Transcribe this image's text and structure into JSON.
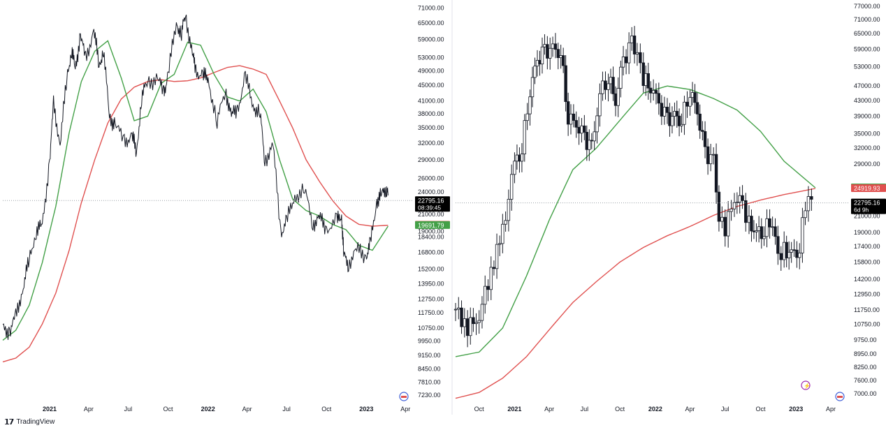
{
  "footer": {
    "brand": "TradingView",
    "logo_icon": "tradingview-logo-icon"
  },
  "colors": {
    "price": "#131722",
    "ma_fast": "#43a047",
    "ma_slow": "#e0504f",
    "last_price_bg": "#000000",
    "grid_dotted": "#9aa0a6"
  },
  "chart_data": [
    {
      "type": "line",
      "name": "daily",
      "y_scale": "log",
      "ylim": [
        7000,
        72000
      ],
      "x_ticks": [
        "2021",
        "Apr",
        "Jul",
        "Oct",
        "2022",
        "Apr",
        "Jul",
        "Oct",
        "2023",
        "Apr"
      ],
      "x_tick_dates": [
        "2021-01-01",
        "2021-04-01",
        "2021-07-01",
        "2021-10-01",
        "2022-01-01",
        "2022-04-01",
        "2022-07-01",
        "2022-10-01",
        "2023-01-01",
        "2023-04-01"
      ],
      "xlim": [
        "2020-09-15",
        "2023-04-20"
      ],
      "y_ticks": [
        71000,
        65000,
        59000,
        53000,
        49000,
        45000,
        41000,
        38000,
        35000,
        32000,
        29000,
        26000,
        24000,
        21000,
        19000,
        18400,
        16800,
        15200,
        13950,
        12750,
        11750,
        10750,
        9950,
        9150,
        8450,
        7810,
        7230
      ],
      "y_tick_labels": [
        "71000.00",
        "65000.00",
        "59000.00",
        "53000.00",
        "49000.00",
        "45000.00",
        "41000.00",
        "38000.00",
        "35000.00",
        "32000.00",
        "29000.00",
        "26000.00",
        "24000.00",
        "21000.00",
        "19000.00",
        "18400.00",
        "16800.00",
        "15200.00",
        "13950.00",
        "12750.00",
        "11750.00",
        "10750.00",
        "9950.00",
        "9150.00",
        "8450.00",
        "7810.00",
        "7230.00"
      ],
      "price_series": {
        "dates": [
          "2020-09-15",
          "2020-10-01",
          "2020-10-15",
          "2020-11-01",
          "2020-11-15",
          "2020-12-01",
          "2020-12-15",
          "2021-01-01",
          "2021-01-10",
          "2021-01-25",
          "2021-02-10",
          "2021-02-21",
          "2021-03-01",
          "2021-03-13",
          "2021-03-25",
          "2021-04-13",
          "2021-04-25",
          "2021-05-05",
          "2021-05-19",
          "2021-06-01",
          "2021-06-22",
          "2021-07-10",
          "2021-07-20",
          "2021-08-01",
          "2021-08-15",
          "2021-09-07",
          "2021-09-21",
          "2021-10-01",
          "2021-10-20",
          "2021-11-01",
          "2021-11-10",
          "2021-11-26",
          "2021-12-04",
          "2021-12-20",
          "2022-01-01",
          "2022-01-22",
          "2022-02-10",
          "2022-02-24",
          "2022-03-10",
          "2022-03-28",
          "2022-04-15",
          "2022-05-01",
          "2022-05-12",
          "2022-05-31",
          "2022-06-18",
          "2022-07-01",
          "2022-07-20",
          "2022-08-12",
          "2022-08-31",
          "2022-09-15",
          "2022-10-01",
          "2022-10-25",
          "2022-11-05",
          "2022-11-10",
          "2022-11-21",
          "2022-12-10",
          "2022-12-31",
          "2023-01-10",
          "2023-01-25",
          "2023-02-05",
          "2023-02-16",
          "2023-02-20"
        ],
        "values": [
          10700,
          10600,
          11400,
          13800,
          16000,
          19200,
          19500,
          29000,
          40000,
          32000,
          47000,
          56000,
          49000,
          61000,
          52000,
          63000,
          50000,
          56000,
          37000,
          36000,
          32000,
          33800,
          30000,
          42000,
          46000,
          46800,
          43000,
          48000,
          65000,
          61000,
          68500,
          54000,
          49000,
          47500,
          47000,
          36000,
          44000,
          37500,
          39000,
          47300,
          40000,
          38000,
          29000,
          31500,
          18900,
          20000,
          23500,
          24100,
          20000,
          20500,
          19400,
          20100,
          20900,
          16400,
          15800,
          17000,
          16500,
          17400,
          22900,
          23400,
          24800,
          23500
        ]
      },
      "ma_fast": {
        "dates": [
          "2020-09-15",
          "2020-10-15",
          "2020-11-15",
          "2020-12-15",
          "2021-01-15",
          "2021-02-15",
          "2021-03-15",
          "2021-04-15",
          "2021-05-15",
          "2021-06-15",
          "2021-07-15",
          "2021-08-15",
          "2021-09-15",
          "2021-10-15",
          "2021-11-15",
          "2021-12-15",
          "2022-01-15",
          "2022-02-15",
          "2022-03-15",
          "2022-04-15",
          "2022-05-15",
          "2022-06-15",
          "2022-07-15",
          "2022-08-15",
          "2022-09-15",
          "2022-10-15",
          "2022-11-15",
          "2022-12-15",
          "2023-01-15",
          "2023-02-20"
        ],
        "values": [
          10000,
          10600,
          12300,
          15800,
          22000,
          34000,
          46000,
          55000,
          58500,
          47000,
          36500,
          37500,
          45500,
          48000,
          58000,
          57000,
          48000,
          42000,
          41000,
          44000,
          38500,
          29000,
          23000,
          21500,
          20800,
          19800,
          19200,
          17500,
          17000,
          19600
        ]
      },
      "ma_slow": {
        "dates": [
          "2020-09-15",
          "2020-10-15",
          "2020-11-15",
          "2020-12-15",
          "2021-01-15",
          "2021-02-15",
          "2021-03-15",
          "2021-04-15",
          "2021-05-15",
          "2021-06-15",
          "2021-07-15",
          "2021-08-15",
          "2021-09-15",
          "2021-10-15",
          "2021-11-15",
          "2021-12-15",
          "2022-01-15",
          "2022-02-15",
          "2022-03-15",
          "2022-04-15",
          "2022-05-15",
          "2022-06-15",
          "2022-07-15",
          "2022-08-15",
          "2022-09-15",
          "2022-10-15",
          "2022-11-15",
          "2022-12-15",
          "2023-01-15",
          "2023-02-20"
        ],
        "values": [
          8800,
          9000,
          9600,
          11000,
          13200,
          17000,
          22500,
          29000,
          36000,
          41500,
          44500,
          46000,
          46500,
          46000,
          46200,
          47000,
          48500,
          50000,
          50500,
          49500,
          48000,
          41000,
          35000,
          29000,
          25500,
          22800,
          20800,
          19800,
          19600,
          19700
        ]
      },
      "last_price": {
        "value": 22795.16,
        "label": "22795.16",
        "countdown": "08:39:45"
      },
      "ma_labels": [
        {
          "value": 19719.76,
          "label": "19719.76",
          "color": "#e0504f"
        },
        {
          "value": 19691.79,
          "label": "19691.79",
          "color": "#43a047"
        }
      ]
    },
    {
      "type": "bar",
      "name": "weekly",
      "y_scale": "log",
      "ylim": [
        6700,
        78000
      ],
      "x_ticks": [
        "Oct",
        "2021",
        "Apr",
        "Jul",
        "Oct",
        "2022",
        "Apr",
        "Jul",
        "Oct",
        "2023",
        "Apr"
      ],
      "x_tick_dates": [
        "2020-10-01",
        "2021-01-01",
        "2021-04-01",
        "2021-07-01",
        "2021-10-01",
        "2022-01-01",
        "2022-04-01",
        "2022-07-01",
        "2022-10-01",
        "2023-01-01",
        "2023-04-01"
      ],
      "xlim": [
        "2020-08-01",
        "2023-05-20"
      ],
      "y_ticks": [
        77000,
        71000,
        65000,
        59000,
        53000,
        47000,
        43000,
        39000,
        35000,
        32000,
        29000,
        21000,
        19000,
        17400,
        15800,
        14200,
        12950,
        11750,
        10750,
        9750,
        8950,
        8250,
        7600,
        7000
      ],
      "y_tick_labels": [
        "77000.00",
        "71000.00",
        "65000.00",
        "59000.00",
        "53000.00",
        "47000.00",
        "43000.00",
        "39000.00",
        "35000.00",
        "32000.00",
        "29000.00",
        "21000.00",
        "19000.00",
        "17400.00",
        "15800.00",
        "14200.00",
        "12950.00",
        "11750.00",
        "10750.00",
        "9750.00",
        "8950.00",
        "8250.00",
        "7600.00",
        "7000.00"
      ],
      "candle_closes": {
        "dates": [
          "2020-08-01",
          "2020-09-01",
          "2020-10-01",
          "2020-11-01",
          "2020-12-01",
          "2021-01-01",
          "2021-01-20",
          "2021-02-10",
          "2021-03-01",
          "2021-03-20",
          "2021-04-10",
          "2021-05-01",
          "2021-05-20",
          "2021-06-10",
          "2021-07-01",
          "2021-07-20",
          "2021-08-10",
          "2021-09-01",
          "2021-09-20",
          "2021-10-10",
          "2021-11-01",
          "2021-11-15",
          "2021-12-01",
          "2021-12-20",
          "2022-01-10",
          "2022-02-01",
          "2022-02-20",
          "2022-03-10",
          "2022-04-01",
          "2022-04-20",
          "2022-05-10",
          "2022-06-01",
          "2022-06-15",
          "2022-07-01",
          "2022-07-25",
          "2022-08-15",
          "2022-09-01",
          "2022-09-20",
          "2022-10-10",
          "2022-11-01",
          "2022-11-15",
          "2022-12-01",
          "2022-12-20",
          "2023-01-10",
          "2023-01-25",
          "2023-02-10",
          "2023-02-20"
        ],
        "values": [
          11800,
          10500,
          11400,
          15000,
          19000,
          29000,
          32000,
          46000,
          55000,
          58000,
          59000,
          58000,
          39000,
          37000,
          34000,
          32000,
          45000,
          50000,
          43000,
          55000,
          61000,
          57000,
          49000,
          47000,
          42000,
          38000,
          39000,
          38000,
          46000,
          40000,
          31000,
          29500,
          20500,
          19500,
          23500,
          22500,
          20000,
          19000,
          19300,
          20500,
          16500,
          17000,
          16600,
          17200,
          22800,
          23500,
          22795
        ]
      },
      "ma_fast": {
        "dates": [
          "2020-08-01",
          "2020-10-01",
          "2020-12-01",
          "2021-02-01",
          "2021-04-01",
          "2021-06-01",
          "2021-08-01",
          "2021-10-01",
          "2021-12-01",
          "2022-02-01",
          "2022-04-01",
          "2022-06-01",
          "2022-08-01",
          "2022-10-01",
          "2022-12-01",
          "2023-02-20"
        ],
        "values": [
          8800,
          9050,
          10500,
          14500,
          20500,
          28000,
          32000,
          38000,
          45000,
          47000,
          46000,
          43500,
          40500,
          35500,
          29500,
          25030
        ]
      },
      "ma_slow": {
        "dates": [
          "2020-08-01",
          "2020-10-01",
          "2020-12-01",
          "2021-02-01",
          "2021-04-01",
          "2021-06-01",
          "2021-08-01",
          "2021-10-01",
          "2021-12-01",
          "2022-02-01",
          "2022-04-01",
          "2022-06-01",
          "2022-08-01",
          "2022-10-01",
          "2022-12-01",
          "2023-02-20"
        ],
        "values": [
          6800,
          7050,
          7700,
          8800,
          10400,
          12300,
          14000,
          15800,
          17300,
          18600,
          19700,
          21100,
          22300,
          23200,
          24000,
          24920
        ]
      },
      "last_price": {
        "value": 22795.16,
        "label": "22795.16",
        "countdown": "6d 9h"
      },
      "ma_labels": [
        {
          "value": 25029.82,
          "label": "25029.82",
          "color": "#43a047"
        },
        {
          "value": 24919.93,
          "label": "24919.93",
          "color": "#e0504f"
        }
      ]
    }
  ]
}
